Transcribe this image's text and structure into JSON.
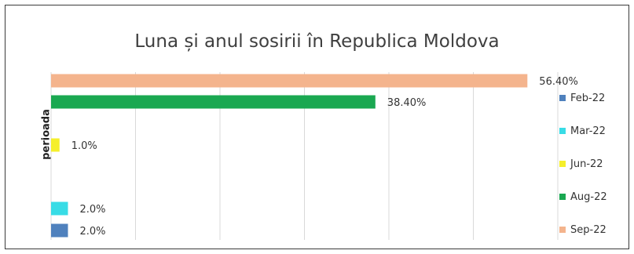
{
  "chart_data": {
    "type": "bar",
    "orientation": "horizontal",
    "title": "Luna și anul sosirii în Republica Moldova",
    "ylabel": "perioada",
    "xlabel": "",
    "value_unit": "%",
    "xlim": [
      0,
      60
    ],
    "grid": "vertical",
    "legend_position": "right",
    "categories": [
      "Feb-22",
      "Mar-22",
      "Jun-22",
      "Aug-22",
      "Sep-22"
    ],
    "values": [
      2.0,
      2.0,
      1.0,
      38.4,
      56.4
    ],
    "data_labels": [
      "2.0%",
      "2.0%",
      "1.0%",
      "38.40%",
      "56.40%"
    ],
    "colors": [
      "#4f81bd",
      "#38dce6",
      "#f5ef2b",
      "#1aa851",
      "#f4b48d"
    ]
  }
}
